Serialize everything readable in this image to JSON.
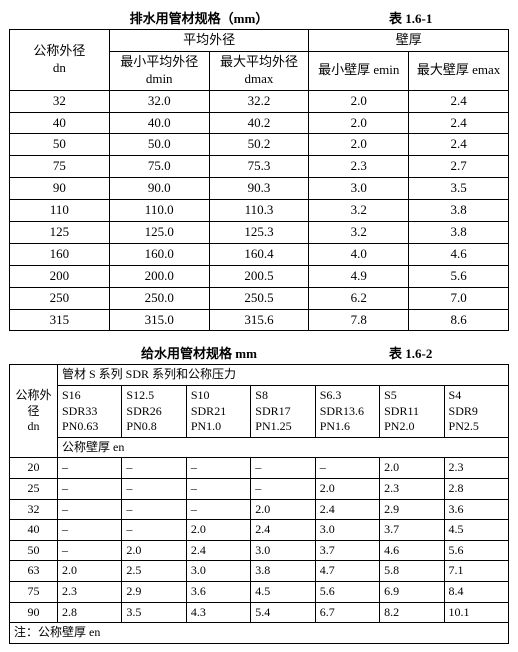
{
  "table1": {
    "title": "排水用管材规格（mm）",
    "label": "表 1.6-1",
    "headers": {
      "dn": "公称外径",
      "dn_sub": "dn",
      "avg": "平均外径",
      "wall": "壁厚",
      "dmin_top": "最小平均外径",
      "dmin": "dmin",
      "dmax_top": "最大平均外径",
      "dmax": "dmax",
      "emin": "最小壁厚 emin",
      "emax": "最大壁厚 emax"
    },
    "rows": [
      {
        "dn": "32",
        "dmin": "32.0",
        "dmax": "32.2",
        "emin": "2.0",
        "emax": "2.4"
      },
      {
        "dn": "40",
        "dmin": "40.0",
        "dmax": "40.2",
        "emin": "2.0",
        "emax": "2.4"
      },
      {
        "dn": "50",
        "dmin": "50.0",
        "dmax": "50.2",
        "emin": "2.0",
        "emax": "2.4"
      },
      {
        "dn": "75",
        "dmin": "75.0",
        "dmax": "75.3",
        "emin": "2.3",
        "emax": "2.7"
      },
      {
        "dn": "90",
        "dmin": "90.0",
        "dmax": "90.3",
        "emin": "3.0",
        "emax": "3.5"
      },
      {
        "dn": "110",
        "dmin": "110.0",
        "dmax": "110.3",
        "emin": "3.2",
        "emax": "3.8"
      },
      {
        "dn": "125",
        "dmin": "125.0",
        "dmax": "125.3",
        "emin": "3.2",
        "emax": "3.8"
      },
      {
        "dn": "160",
        "dmin": "160.0",
        "dmax": "160.4",
        "emin": "4.0",
        "emax": "4.6"
      },
      {
        "dn": "200",
        "dmin": "200.0",
        "dmax": "200.5",
        "emin": "4.9",
        "emax": "5.6"
      },
      {
        "dn": "250",
        "dmin": "250.0",
        "dmax": "250.5",
        "emin": "6.2",
        "emax": "7.0"
      },
      {
        "dn": "315",
        "dmin": "315.0",
        "dmax": "315.6",
        "emin": "7.8",
        "emax": "8.6"
      }
    ]
  },
  "table2": {
    "title": "给水用管材规格 mm",
    "label": "表 1.6-2",
    "headers": {
      "dn": "公称外径",
      "dn_sub": "dn",
      "series": "管材 S 系列 SDR 系列和公称压力",
      "en": "公称壁厚 en"
    },
    "cols": [
      {
        "s": "S16",
        "sdr": "SDR33",
        "pn": "PN0.63"
      },
      {
        "s": "S12.5",
        "sdr": "SDR26",
        "pn": "PN0.8"
      },
      {
        "s": "S10",
        "sdr": "SDR21",
        "pn": "PN1.0"
      },
      {
        "s": "S8",
        "sdr": "SDR17",
        "pn": "PN1.25"
      },
      {
        "s": "S6.3",
        "sdr": "SDR13.6",
        "pn": "PN1.6"
      },
      {
        "s": "S5",
        "sdr": "SDR11",
        "pn": "PN2.0"
      },
      {
        "s": "S4",
        "sdr": "SDR9",
        "pn": "PN2.5"
      }
    ],
    "rows": [
      {
        "dn": "20",
        "v": [
          "–",
          "–",
          "–",
          "–",
          "–",
          "2.0",
          "2.3"
        ]
      },
      {
        "dn": "25",
        "v": [
          "–",
          "–",
          "–",
          "–",
          "2.0",
          "2.3",
          "2.8"
        ]
      },
      {
        "dn": "32",
        "v": [
          "–",
          "–",
          "–",
          "2.0",
          "2.4",
          "2.9",
          "3.6"
        ]
      },
      {
        "dn": "40",
        "v": [
          "–",
          "–",
          "2.0",
          "2.4",
          "3.0",
          "3.7",
          "4.5"
        ]
      },
      {
        "dn": "50",
        "v": [
          "–",
          "2.0",
          "2.4",
          "3.0",
          "3.7",
          "4.6",
          "5.6"
        ]
      },
      {
        "dn": "63",
        "v": [
          "2.0",
          "2.5",
          "3.0",
          "3.8",
          "4.7",
          "5.8",
          "7.1"
        ]
      },
      {
        "dn": "75",
        "v": [
          "2.3",
          "2.9",
          "3.6",
          "4.5",
          "5.6",
          "6.9",
          "8.4"
        ]
      },
      {
        "dn": "90",
        "v": [
          "2.8",
          "3.5",
          "4.3",
          "5.4",
          "6.7",
          "8.2",
          "10.1"
        ]
      }
    ],
    "footnote": "注：公称壁厚 en"
  }
}
